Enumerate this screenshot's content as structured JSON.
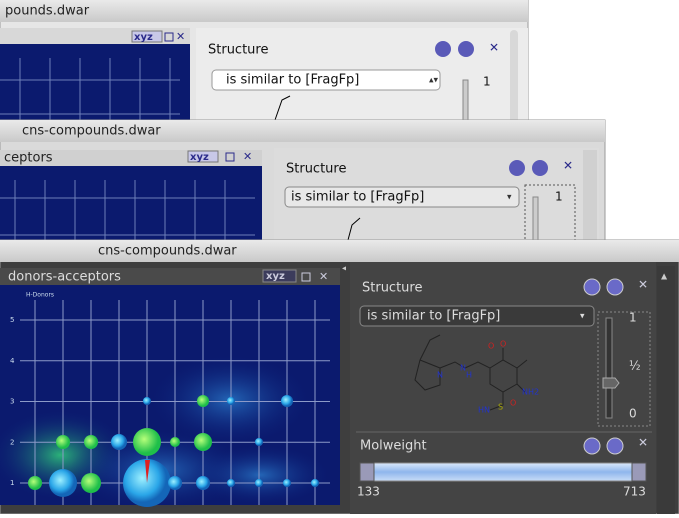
{
  "windows": [
    {
      "title": "pounds.dwar",
      "plot": {
        "menu": "xyz"
      },
      "panel": {
        "label": "Structure",
        "combo": "is similar to [FragFp]",
        "slider_max": "1"
      }
    },
    {
      "title": "cns-compounds.dwar",
      "plot": {
        "name": "ceptors",
        "menu": "xyz"
      },
      "panel": {
        "label": "Structure",
        "combo": "is similar to [FragFp]",
        "slider_max": "1"
      }
    },
    {
      "title": "cns-compounds.dwar",
      "plot": {
        "name": "donors-acceptors",
        "menu": "xyz",
        "axis_title": "H-Donors",
        "yticks": [
          "5",
          "4",
          "3",
          "2",
          "1"
        ]
      },
      "panel": {
        "label": "Structure",
        "combo": "is similar to [FragFp]",
        "slider_max": "1",
        "slider_mid": "½",
        "slider_min": "0",
        "atoms": [
          "N",
          "O",
          "O",
          "N",
          "H",
          "NH2",
          "S",
          "O",
          "HN"
        ]
      },
      "filter": {
        "label": "Molweight",
        "min": "133",
        "max": "713"
      }
    }
  ]
}
